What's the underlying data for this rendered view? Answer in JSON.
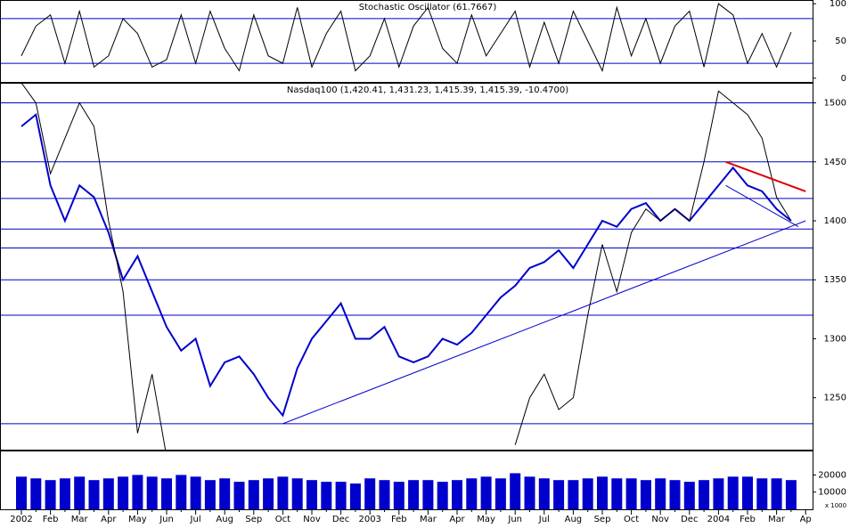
{
  "chart_data": [
    {
      "type": "line",
      "title": "Stochastic Oscillator (61.7667)",
      "ylim": [
        -5,
        105
      ],
      "yticks": [
        0,
        50,
        100
      ],
      "reference_lines": [
        20,
        80
      ],
      "reference_color": "#0000cc",
      "series": [
        {
          "color": "#000000",
          "values": [
            30,
            70,
            85,
            20,
            90,
            15,
            30,
            80,
            60,
            15,
            25,
            85,
            20,
            90,
            40,
            10,
            85,
            30,
            20,
            95,
            15,
            60,
            90,
            10,
            30,
            80,
            15,
            70,
            95,
            40,
            20,
            85,
            30,
            60,
            90,
            15,
            75,
            20,
            90,
            50,
            10,
            95,
            30,
            80,
            20,
            70,
            90,
            15,
            100,
            85,
            20,
            60,
            15,
            61.7667,
            null
          ]
        }
      ]
    },
    {
      "type": "line",
      "title": "Nasdaq100 (1,420.41, 1,431.23, 1,415.39, 1,415.39, -10.4700)",
      "ylim": [
        1206,
        1517
      ],
      "yticks": [
        1250,
        1300,
        1350,
        1400,
        1450,
        1500
      ],
      "reference_lines": [
        1500,
        1450,
        1419,
        1393,
        1377,
        1350,
        1320,
        1228
      ],
      "reference_color": "#0000cc",
      "series": [
        {
          "color": "#0000cc",
          "values": [
            1480,
            1490,
            1430,
            1400,
            1430,
            1420,
            1390,
            1350,
            1370,
            1340,
            1310,
            1290,
            1300,
            1260,
            1280,
            1285,
            1270,
            1250,
            1235,
            1275,
            1300,
            1315,
            1330,
            1300,
            1300,
            1310,
            1285,
            1280,
            1285,
            1300,
            1295,
            1305,
            1320,
            1335,
            1345,
            1360,
            1365,
            1375,
            1360,
            1380,
            1400,
            1395,
            1410,
            1415,
            1400,
            1410,
            1400,
            1415,
            1430,
            1445,
            1430,
            1425,
            1410,
            1400,
            null
          ]
        },
        {
          "color": "#000000",
          "values": [
            1517,
            1500,
            1440,
            1470,
            1500,
            1480,
            1400,
            1340,
            1220,
            1270,
            1200,
            null,
            null,
            null,
            null,
            null,
            null,
            null,
            null,
            null,
            null,
            null,
            null,
            null,
            null,
            null,
            null,
            null,
            null,
            null,
            null,
            null,
            null,
            null,
            1210,
            1250,
            1270,
            1240,
            1250,
            1320,
            1380,
            1340,
            1390,
            1410,
            1400,
            1410,
            1400,
            1450,
            1510,
            1500,
            1490,
            1470,
            1420,
            1400,
            null
          ]
        }
      ],
      "trendlines": [
        {
          "x": [
            18,
            54
          ],
          "values": [
            1228,
            1400
          ],
          "color": "#0000cc"
        },
        {
          "x": [
            48.5,
            54
          ],
          "values": [
            1450,
            1425
          ],
          "color": "#dd0000"
        },
        {
          "x": [
            48.5,
            53.5
          ],
          "values": [
            1430,
            1395
          ],
          "color": "#0000cc"
        }
      ]
    },
    {
      "type": "bar",
      "ylim": [
        0,
        34200
      ],
      "yticks": [
        10000,
        20000
      ],
      "y_unit_label": "x 1000",
      "color": "#0000cc",
      "categories": [
        "2002",
        null,
        "Feb",
        null,
        "Mar",
        null,
        "Apr",
        null,
        "May",
        null,
        "Jun",
        null,
        "Jul",
        null,
        "Aug",
        null,
        "Sep",
        null,
        "Oct",
        null,
        "Nov",
        null,
        "Dec",
        null,
        "2003",
        null,
        "Feb",
        null,
        "Mar",
        null,
        "Apr",
        null,
        "May",
        null,
        "Jun",
        null,
        "Jul",
        null,
        "Aug",
        null,
        "Sep",
        null,
        "Oct",
        null,
        "Nov",
        null,
        "Dec",
        null,
        "2004",
        null,
        "Feb",
        null,
        "Mar",
        null,
        "Ap"
      ],
      "values": [
        19000,
        18000,
        17000,
        18000,
        19000,
        17000,
        18000,
        19000,
        20000,
        19000,
        18000,
        20000,
        19000,
        17000,
        18000,
        16000,
        17000,
        18000,
        19000,
        18000,
        17000,
        16000,
        16000,
        15000,
        18000,
        17000,
        16000,
        17000,
        17000,
        16000,
        17000,
        18000,
        19000,
        18000,
        21000,
        19000,
        18000,
        17000,
        17000,
        18000,
        19000,
        18000,
        18000,
        17000,
        18000,
        17000,
        16000,
        17000,
        18000,
        19000,
        19000,
        18000,
        18000,
        17000,
        null
      ]
    }
  ]
}
